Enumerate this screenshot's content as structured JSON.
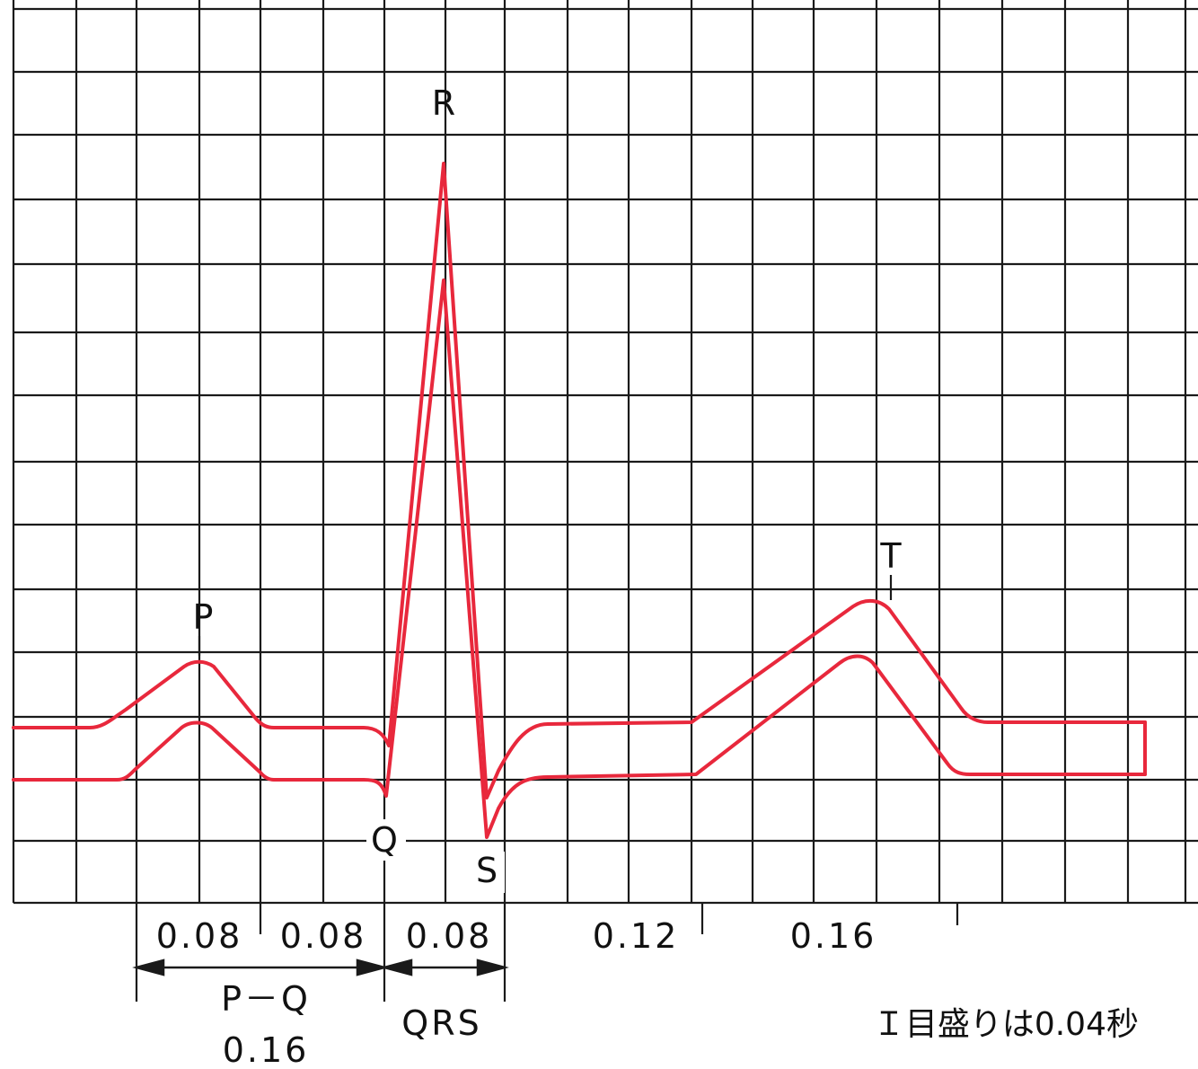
{
  "wave_labels": {
    "p": "P",
    "q": "Q",
    "r": "R",
    "s": "S",
    "t": "T"
  },
  "intervals": {
    "p_duration": "0.08",
    "p_to_q": "0.08",
    "qrs_duration": "0.08",
    "s_to_t": "0.12",
    "t_duration": "0.16"
  },
  "brackets": {
    "pq_name": "P－Q",
    "pq_value": "0.16",
    "qrs_name": "QRS"
  },
  "scale_note": "Ｉ目盛りは0.04秒",
  "colors": {
    "trace": "#e8283c",
    "grid": "#1a1a1a",
    "background": "#ffffff"
  }
}
